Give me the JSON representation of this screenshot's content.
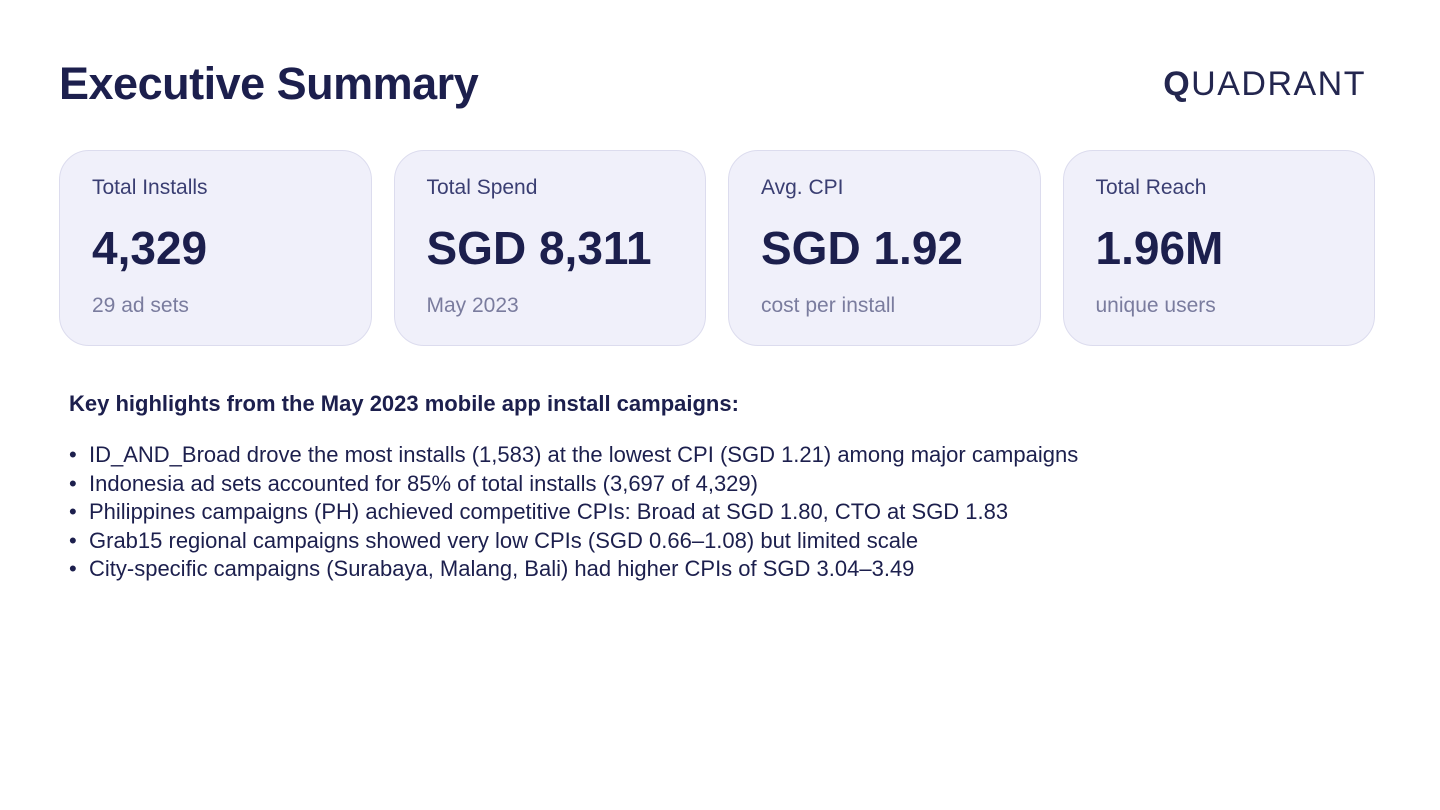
{
  "header": {
    "title": "Executive Summary",
    "logo_initial": "Q",
    "logo_rest": "UADRANT"
  },
  "kpi_cards": [
    {
      "label": "Total Installs",
      "value": "4,329",
      "sub": "29 ad sets"
    },
    {
      "label": "Total Spend",
      "value": "SGD 8,311",
      "sub": "May 2023"
    },
    {
      "label": "Avg. CPI",
      "value": "SGD 1.92",
      "sub": "cost per install"
    },
    {
      "label": "Total Reach",
      "value": "1.96M",
      "sub": "unique users"
    }
  ],
  "highlights": {
    "heading": "Key highlights from the May 2023 mobile app install campaigns:",
    "bullet_symbol": "•",
    "items": [
      "ID_AND_Broad drove the most installs (1,583) at the lowest CPI (SGD 1.21) among major campaigns",
      "Indonesia ad sets accounted for 85% of total installs (3,697 of 4,329)",
      "Philippines campaigns (PH) achieved competitive CPIs: Broad at SGD 1.80, CTO at SGD 1.83",
      "Grab15 regional campaigns showed very low CPIs (SGD 0.66–1.08) but limited scale",
      "City-specific campaigns (Surabaya, Malang, Bali) had higher CPIs of SGD 3.04–3.49"
    ]
  },
  "colors": {
    "primary_text": "#1c1f4d",
    "card_background": "#f0f0fa",
    "muted_text": "#7a7c9e"
  }
}
